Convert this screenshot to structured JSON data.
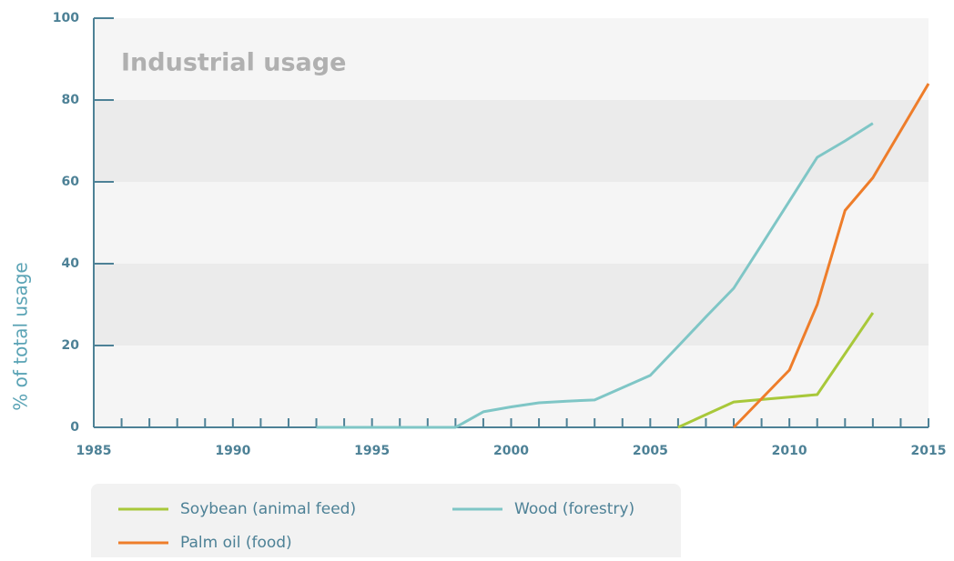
{
  "chart_data": {
    "type": "line",
    "title": "Industrial usage",
    "ylabel": "% of total usage",
    "x": [
      1993,
      1994,
      1995,
      1996,
      1997,
      1998,
      1999,
      2000,
      2001,
      2002,
      2003,
      2004,
      2005,
      2006,
      2007,
      2008,
      2009,
      2010,
      2011,
      2012,
      2013,
      2014,
      2015
    ],
    "series": [
      {
        "name": "Soybean (animal feed)",
        "color": "#a8c83a",
        "values": [
          null,
          null,
          null,
          null,
          null,
          null,
          null,
          null,
          null,
          null,
          null,
          null,
          null,
          0,
          3.1,
          6.2,
          6.8,
          7.4,
          8,
          18,
          28,
          null,
          null
        ]
      },
      {
        "name": "Wood (forestry)",
        "color": "#7fc6c6",
        "values": [
          0,
          0,
          0,
          0,
          0,
          0,
          3.8,
          5,
          6,
          6.4,
          6.7,
          9.7,
          12.7,
          19.8,
          27,
          34,
          44.6,
          55.3,
          66,
          70,
          74.3,
          null,
          null
        ]
      },
      {
        "name": "Palm oil (food)",
        "color": "#ee7d2a",
        "values": [
          null,
          null,
          null,
          null,
          null,
          null,
          null,
          null,
          null,
          null,
          null,
          null,
          null,
          null,
          null,
          0,
          7,
          14,
          30,
          53,
          61,
          72.5,
          84
        ]
      }
    ],
    "xlim": [
      1985,
      2015
    ],
    "xticks": [
      1985,
      1990,
      1995,
      2000,
      2005,
      2010,
      2015
    ],
    "xminorticks": [
      1986,
      1987,
      1988,
      1989,
      1991,
      1992,
      1993,
      1994,
      1996,
      1997,
      1998,
      1999,
      2001,
      2002,
      2003,
      2004,
      2006,
      2007,
      2008,
      2009,
      2011,
      2012,
      2013,
      2014
    ],
    "ylim": [
      0,
      100
    ],
    "yticks": [
      0,
      20,
      40,
      60,
      80,
      100
    ],
    "grid": "bands",
    "legend": "bottom"
  }
}
